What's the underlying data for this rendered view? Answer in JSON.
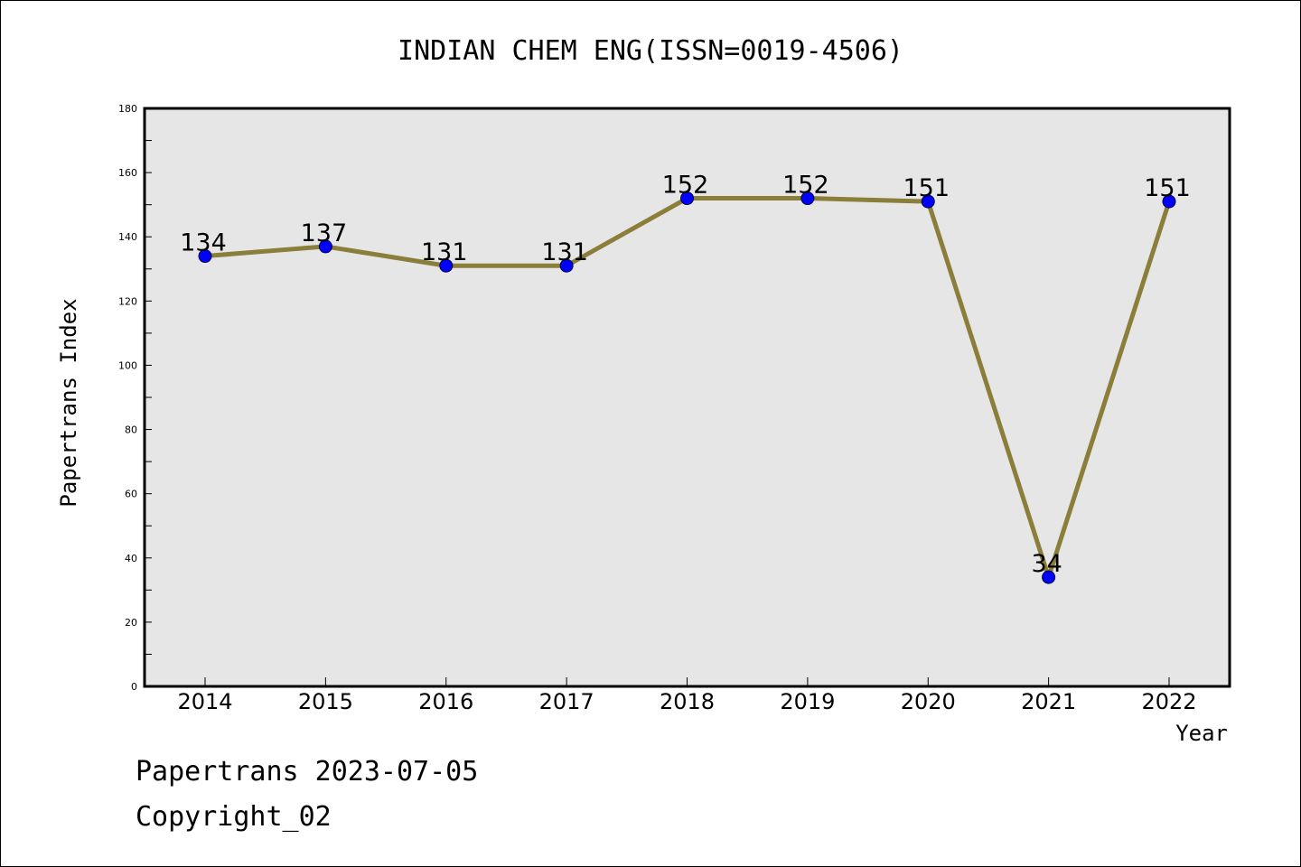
{
  "chart_data": {
    "type": "line",
    "title": "INDIAN CHEM ENG(ISSN=0019-4506)",
    "xlabel": "Year",
    "ylabel": "Papertrans Index",
    "categories": [
      "2014",
      "2015",
      "2016",
      "2017",
      "2018",
      "2019",
      "2020",
      "2021",
      "2022"
    ],
    "series": [
      {
        "values": [
          134,
          137,
          131,
          131,
          152,
          152,
          151,
          34,
          151
        ]
      }
    ],
    "ylim": [
      0,
      180
    ],
    "yticks": [
      "0",
      "20",
      "40",
      "60",
      "80",
      "100",
      "120",
      "140",
      "160",
      "180"
    ],
    "grid": false,
    "line_color": "#8b7d3a",
    "marker_color": "#0000ff",
    "plot_background": "#e6e6e6"
  },
  "footer": {
    "source": "Papertrans 2023-07-05",
    "copyright": "Copyright_02"
  }
}
